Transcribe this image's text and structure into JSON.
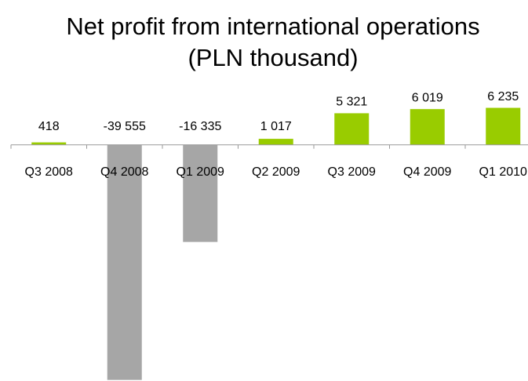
{
  "chart_data": {
    "type": "bar",
    "title": "Net profit from international operations (PLN thousand)",
    "categories": [
      "Q3 2008",
      "Q4 2008",
      "Q1 2009",
      "Q2 2009",
      "Q3 2009",
      "Q4 2009",
      "Q1 2010"
    ],
    "values": [
      418,
      -39555,
      -16335,
      1017,
      5321,
      6019,
      6235
    ],
    "value_labels": [
      "418",
      "-39 555",
      "-16 335",
      "1 017",
      "5 321",
      "6 019",
      "6 235"
    ],
    "color": "#99cc00",
    "negative_color": "#a6a6a6",
    "ylim": [
      -40000,
      10000
    ]
  }
}
